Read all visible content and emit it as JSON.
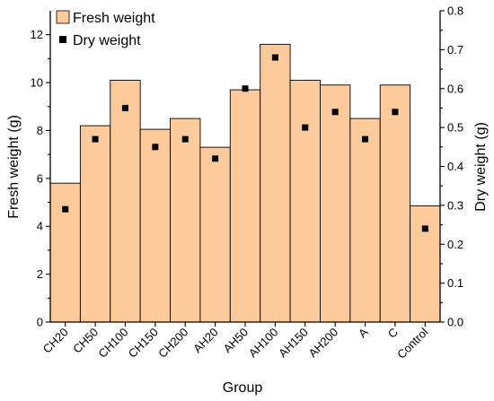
{
  "chart_data": {
    "type": "bar",
    "categories": [
      "CH20",
      "CH50",
      "CH100",
      "CH150",
      "CH200",
      "AH20",
      "AH50",
      "AH100",
      "AH150",
      "AH200",
      "A",
      "C",
      "Control"
    ],
    "series": [
      {
        "name": "Fresh weight",
        "axis": "left",
        "kind": "bar",
        "color": "#FDCB9B",
        "values": [
          5.8,
          8.2,
          10.1,
          8.05,
          8.5,
          7.3,
          9.7,
          11.6,
          10.1,
          9.9,
          8.5,
          9.9,
          4.85
        ]
      },
      {
        "name": "Dry weight",
        "axis": "right",
        "kind": "scatter",
        "color": "#000000",
        "values": [
          0.29,
          0.47,
          0.55,
          0.45,
          0.47,
          0.42,
          0.6,
          0.68,
          0.5,
          0.54,
          0.47,
          0.54,
          0.24
        ]
      }
    ],
    "xlabel": "Group",
    "ylabel": "Fresh weight (g)",
    "y2label": "Dry weight (g)",
    "ylim": [
      0,
      13
    ],
    "y2lim": [
      0,
      0.8
    ],
    "yticks": [
      "0",
      "2",
      "4",
      "6",
      "8",
      "10",
      "12"
    ],
    "y2ticks": [
      "0.0",
      "0.1",
      "0.2",
      "0.3",
      "0.4",
      "0.5",
      "0.6",
      "0.7",
      "0.8"
    ],
    "legend_position": "top-left",
    "grid": false
  }
}
